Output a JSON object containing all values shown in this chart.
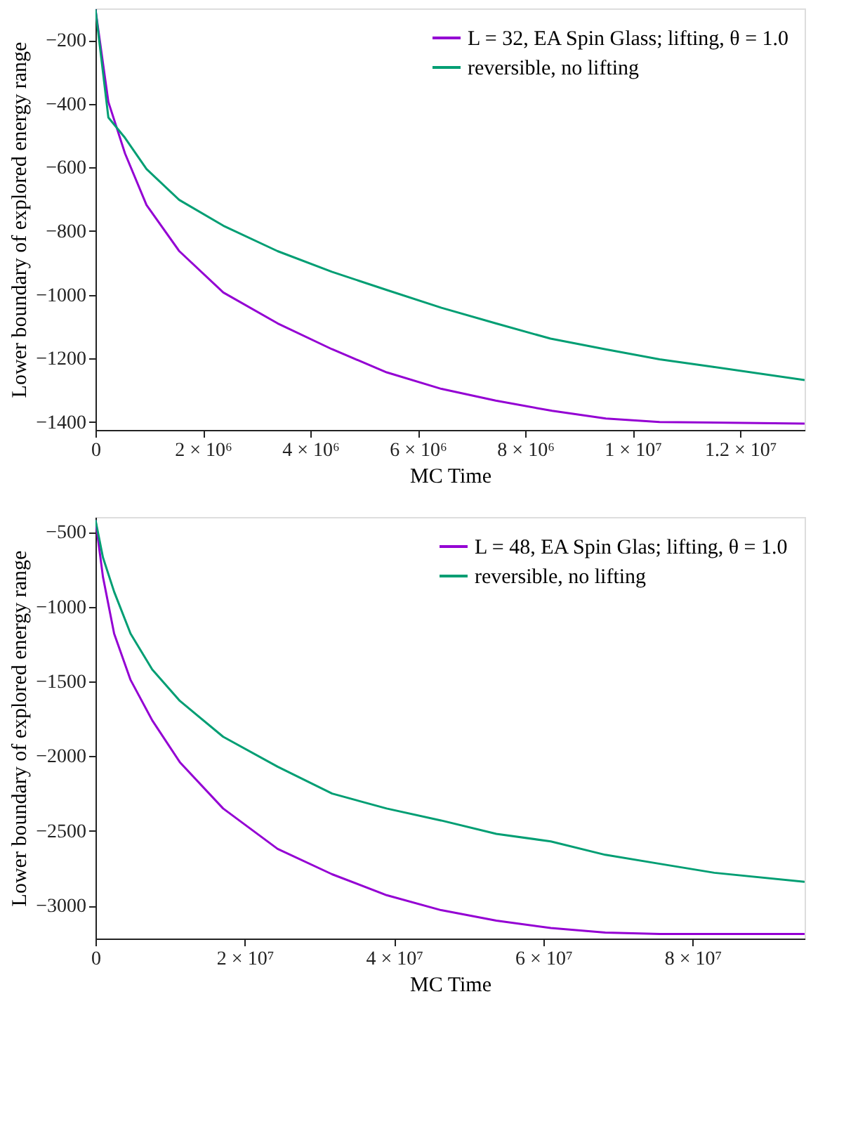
{
  "chart_data": [
    {
      "type": "line",
      "xlabel": "MC Time",
      "ylabel": "Lower boundary of explored energy range",
      "xlim": [
        0,
        13200000
      ],
      "ylim": [
        -1425,
        -100
      ],
      "xticks": [
        0,
        {
          "value": 2000000,
          "label": "2 × 10⁶"
        },
        {
          "value": 4000000,
          "label": "4 × 10⁶"
        },
        {
          "value": 6000000,
          "label": "6 × 10⁶"
        },
        {
          "value": 8000000,
          "label": "8 × 10⁶"
        },
        {
          "value": 10000000,
          "label": "1 × 10⁷"
        },
        {
          "value": 12000000,
          "label": "1.2 × 10⁷"
        }
      ],
      "yticks": [
        -1400,
        -1200,
        -1000,
        -800,
        -600,
        -400,
        -200
      ],
      "grid": false,
      "legend": "top right",
      "line_style": "solid",
      "marker": "none",
      "series": [
        {
          "name": "L = 32, EA Spin Glass; lifting, θ = 1.0",
          "color": "#9400d3",
          "x": [
            0,
            240000,
            550000,
            950000,
            1560000,
            2380000,
            3390000,
            4400000,
            5420000,
            6440000,
            7450000,
            8500000,
            9500000,
            10500000,
            13200000
          ],
          "values": [
            -103,
            -394,
            -556,
            -718,
            -863,
            -993,
            -1090,
            -1171,
            -1244,
            -1296,
            -1333,
            -1365,
            -1389,
            -1400,
            -1405
          ]
        },
        {
          "name": "reversible, no lifting",
          "color": "#009e73",
          "x": [
            0,
            240000,
            550000,
            950000,
            1560000,
            2380000,
            3390000,
            4400000,
            5420000,
            6440000,
            7450000,
            8470000,
            9480000,
            10500000,
            11500000,
            13200000
          ],
          "values": [
            -103,
            -443,
            -507,
            -605,
            -702,
            -783,
            -863,
            -928,
            -985,
            -1041,
            -1090,
            -1138,
            -1171,
            -1203,
            -1227,
            -1268
          ]
        }
      ]
    },
    {
      "type": "line",
      "xlabel": "MC Time",
      "ylabel": "Lower boundary of explored energy range",
      "xlim": [
        0,
        95000000
      ],
      "ylim": [
        -3220,
        -400
      ],
      "xticks": [
        0,
        {
          "value": 20000000,
          "label": "2 × 10⁷"
        },
        {
          "value": 40000000,
          "label": "4 × 10⁷"
        },
        {
          "value": 60000000,
          "label": "6 × 10⁷"
        },
        {
          "value": 80000000,
          "label": "8 × 10⁷"
        }
      ],
      "yticks": [
        -3000,
        -2500,
        -2000,
        -1500,
        -1000,
        -500
      ],
      "grid": false,
      "legend": "top right",
      "line_style": "solid",
      "marker": "none",
      "series": [
        {
          "name": "L = 48, EA Spin Glas; lifting, θ = 1.0",
          "color": "#9400d3",
          "x": [
            0,
            1000000,
            2500000,
            4700000,
            7600000,
            11300000,
            17100000,
            24400000,
            31700000,
            39000000,
            46300000,
            53700000,
            61000000,
            68300000,
            75600000,
            95000000
          ],
          "values": [
            -420,
            -800,
            -1180,
            -1490,
            -1760,
            -2040,
            -2350,
            -2620,
            -2790,
            -2930,
            -3030,
            -3100,
            -3150,
            -3180,
            -3190,
            -3190
          ]
        },
        {
          "name": "reversible, no lifting",
          "color": "#009e73",
          "x": [
            0,
            1000000,
            2500000,
            4700000,
            7600000,
            11300000,
            17100000,
            24400000,
            31700000,
            39000000,
            46300000,
            53700000,
            61000000,
            68300000,
            75600000,
            82900000,
            95000000
          ],
          "values": [
            -420,
            -670,
            -900,
            -1180,
            -1420,
            -1630,
            -1870,
            -2070,
            -2250,
            -2350,
            -2430,
            -2520,
            -2570,
            -2660,
            -2720,
            -2780,
            -2840
          ]
        }
      ]
    }
  ]
}
